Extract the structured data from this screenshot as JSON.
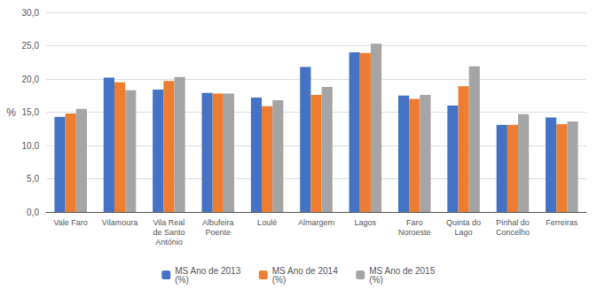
{
  "chart_data": {
    "type": "bar",
    "categories": [
      "Vale Faro",
      "Vilamoura",
      "Vila Real\nde Santo\nAntónio",
      "Albufeira\nPoente",
      "Loulé",
      "Almargem",
      "Lagos",
      "Faro\nNoroeste",
      "Quinta do\nLago",
      "Pinhal do\nConcelho",
      "Ferreiras"
    ],
    "series": [
      {
        "name": "MS Ano de 2013\n(%)",
        "color": "#4472C4",
        "values": [
          14.3,
          20.2,
          18.4,
          17.9,
          17.2,
          21.8,
          24.0,
          17.5,
          16.0,
          13.1,
          14.2
        ]
      },
      {
        "name": "MS Ano de 2014\n(%)",
        "color": "#ED7D31",
        "values": [
          14.8,
          19.5,
          19.7,
          17.8,
          15.9,
          17.6,
          23.9,
          17.0,
          18.9,
          13.1,
          13.2
        ]
      },
      {
        "name": "MS Ano de 2015\n(%)",
        "color": "#A5A5A5",
        "values": [
          15.5,
          18.3,
          20.3,
          17.8,
          16.8,
          18.8,
          25.3,
          17.6,
          21.9,
          14.7,
          13.6
        ]
      }
    ],
    "ylabel": "%",
    "ylim": [
      0,
      30
    ],
    "yticks": [
      {
        "value": 0,
        "label": "0,0"
      },
      {
        "value": 5,
        "label": "5,0"
      },
      {
        "value": 10,
        "label": "10,0"
      },
      {
        "value": 15,
        "label": "15,0"
      },
      {
        "value": 20,
        "label": "20,0"
      },
      {
        "value": 25,
        "label": "25,0"
      },
      {
        "value": 30,
        "label": "30,0"
      }
    ],
    "grid": true,
    "legend": "bottom"
  }
}
